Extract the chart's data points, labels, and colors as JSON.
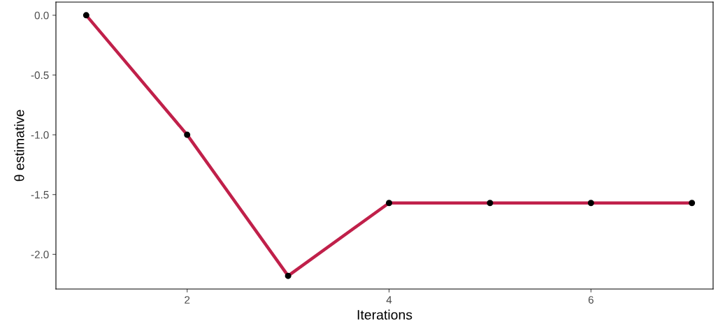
{
  "chart_data": {
    "type": "line",
    "xlabel": "Iterations",
    "ylabel": "θ estimative",
    "x": [
      1,
      2,
      3,
      4,
      5,
      6,
      7
    ],
    "series": [
      {
        "color": "#c0204a",
        "values": [
          0.0,
          -1.0,
          -2.18,
          -1.57,
          -1.57,
          -1.57,
          -1.57
        ]
      },
      {
        "type": "scatter",
        "color": "#000000",
        "marker": "circle",
        "values": [
          0.0,
          -1.0,
          -2.18,
          -1.57,
          -1.57,
          -1.57,
          -1.57
        ]
      }
    ],
    "xlim": [
      0.7,
      7.21
    ],
    "ylim": [
      -2.29,
      0.11
    ],
    "xticks": [
      2,
      4,
      6
    ],
    "yticks": [
      {
        "value": 0.0,
        "label": "0.0"
      },
      {
        "value": -0.5,
        "label": "-0.5"
      },
      {
        "value": -1.0,
        "label": "-1.0"
      },
      {
        "value": -1.5,
        "label": "-1.5"
      },
      {
        "value": -2.0,
        "label": "-2.0"
      }
    ],
    "grid": false,
    "legend": false
  }
}
